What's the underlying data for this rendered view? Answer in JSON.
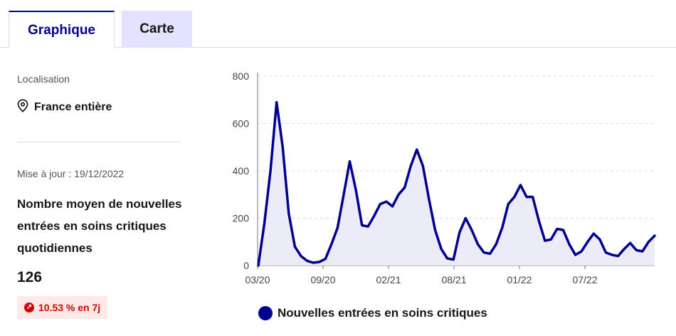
{
  "tabs": [
    {
      "label": "Graphique",
      "active": true
    },
    {
      "label": "Carte",
      "active": false
    }
  ],
  "sidebar": {
    "location_label": "Localisation",
    "location_value": "France entière",
    "location_icon": "map-pin-icon",
    "update_text": "Mise à jour : 19/12/2022",
    "indicator_title": "Nombre moyen de nouvelles entrées en soins critiques quotidiennes",
    "indicator_value": "126",
    "trend_badge": "10.53 % en 7j",
    "trend_icon": "arrow-up-right-icon",
    "trend_color": "#ce0500"
  },
  "colors": {
    "accent": "#000091",
    "area_fill": "#ececf8",
    "tab_inactive_bg": "#e3e3fd"
  },
  "chart_data": {
    "type": "area",
    "y_ticks": [
      "800",
      "600",
      "400",
      "200",
      "0"
    ],
    "x_ticks": [
      "03/20",
      "09/20",
      "02/21",
      "08/21",
      "01/22",
      "07/22"
    ],
    "ylim": [
      0,
      800
    ],
    "grid": true,
    "legend_position": "bottom",
    "series": [
      {
        "name": "Nouvelles entrées en soins critiques",
        "color": "#000091",
        "points": [
          [
            "03/20",
            0
          ],
          [
            "03/20",
            180
          ],
          [
            "03/20",
            400
          ],
          [
            "04/20",
            690
          ],
          [
            "04/20",
            500
          ],
          [
            "04/20",
            220
          ],
          [
            "05/20",
            80
          ],
          [
            "05/20",
            40
          ],
          [
            "06/20",
            20
          ],
          [
            "07/20",
            12
          ],
          [
            "08/20",
            15
          ],
          [
            "09/20",
            28
          ],
          [
            "10/20",
            90
          ],
          [
            "10/20",
            160
          ],
          [
            "11/20",
            300
          ],
          [
            "11/20",
            440
          ],
          [
            "11/20",
            320
          ],
          [
            "12/20",
            170
          ],
          [
            "12/20",
            165
          ],
          [
            "01/21",
            210
          ],
          [
            "01/21",
            260
          ],
          [
            "02/21",
            270
          ],
          [
            "02/21",
            250
          ],
          [
            "03/21",
            300
          ],
          [
            "03/21",
            330
          ],
          [
            "04/21",
            420
          ],
          [
            "04/21",
            490
          ],
          [
            "04/21",
            420
          ],
          [
            "05/21",
            280
          ],
          [
            "05/21",
            150
          ],
          [
            "06/21",
            70
          ],
          [
            "07/21",
            30
          ],
          [
            "07/21",
            25
          ],
          [
            "08/21",
            140
          ],
          [
            "08/21",
            200
          ],
          [
            "09/21",
            150
          ],
          [
            "09/21",
            90
          ],
          [
            "10/21",
            55
          ],
          [
            "10/21",
            50
          ],
          [
            "11/21",
            90
          ],
          [
            "11/21",
            160
          ],
          [
            "12/21",
            260
          ],
          [
            "12/21",
            290
          ],
          [
            "01/22",
            340
          ],
          [
            "01/22",
            290
          ],
          [
            "02/22",
            290
          ],
          [
            "02/22",
            190
          ],
          [
            "03/22",
            105
          ],
          [
            "03/22",
            110
          ],
          [
            "04/22",
            155
          ],
          [
            "04/22",
            150
          ],
          [
            "05/22",
            90
          ],
          [
            "05/22",
            45
          ],
          [
            "06/22",
            60
          ],
          [
            "06/22",
            100
          ],
          [
            "07/22",
            135
          ],
          [
            "07/22",
            110
          ],
          [
            "08/22",
            55
          ],
          [
            "08/22",
            45
          ],
          [
            "09/22",
            40
          ],
          [
            "10/22",
            70
          ],
          [
            "10/22",
            95
          ],
          [
            "11/22",
            65
          ],
          [
            "11/22",
            60
          ],
          [
            "12/22",
            100
          ],
          [
            "12/22",
            126
          ]
        ],
        "values": [
          0,
          180,
          400,
          690,
          500,
          220,
          80,
          40,
          20,
          12,
          15,
          28,
          90,
          160,
          300,
          440,
          320,
          170,
          165,
          210,
          260,
          270,
          250,
          300,
          330,
          420,
          490,
          420,
          280,
          150,
          70,
          30,
          25,
          140,
          200,
          150,
          90,
          55,
          50,
          90,
          160,
          260,
          290,
          340,
          290,
          290,
          190,
          105,
          110,
          155,
          150,
          90,
          45,
          60,
          100,
          135,
          110,
          55,
          45,
          40,
          70,
          95,
          65,
          60,
          100,
          126
        ]
      }
    ]
  }
}
